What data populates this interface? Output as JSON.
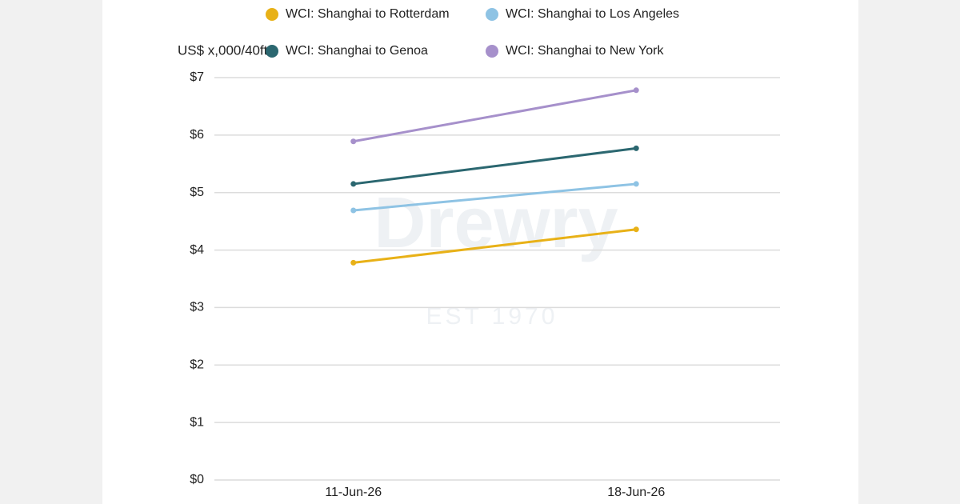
{
  "chart_data": {
    "type": "line",
    "y_axis_label": "US$ x,000/40ft",
    "watermark": "Drewry",
    "watermark_sub": "EST 1970",
    "categories": [
      "11-Jun-26",
      "18-Jun-26"
    ],
    "series": [
      {
        "name": "WCI: Shanghai to Rotterdam",
        "color": "#e8b117",
        "values": [
          3.78,
          4.36
        ]
      },
      {
        "name": "WCI: Shanghai to Los Angeles",
        "color": "#8ec3e4",
        "values": [
          4.69,
          5.15
        ]
      },
      {
        "name": "WCI: Shanghai to Genoa",
        "color": "#2b6770",
        "values": [
          5.15,
          5.77
        ]
      },
      {
        "name": "WCI: Shanghai to New York",
        "color": "#a690cb",
        "values": [
          5.89,
          6.78
        ]
      }
    ],
    "ylim": [
      0,
      7
    ],
    "yticks": [
      {
        "value": 0,
        "label": "$0"
      },
      {
        "value": 1,
        "label": "$1"
      },
      {
        "value": 2,
        "label": "$2"
      },
      {
        "value": 3,
        "label": "$3"
      },
      {
        "value": 4,
        "label": "$4"
      },
      {
        "value": 5,
        "label": "$5"
      },
      {
        "value": 6,
        "label": "$6"
      },
      {
        "value": 7,
        "label": "$7"
      }
    ],
    "grid": true
  }
}
